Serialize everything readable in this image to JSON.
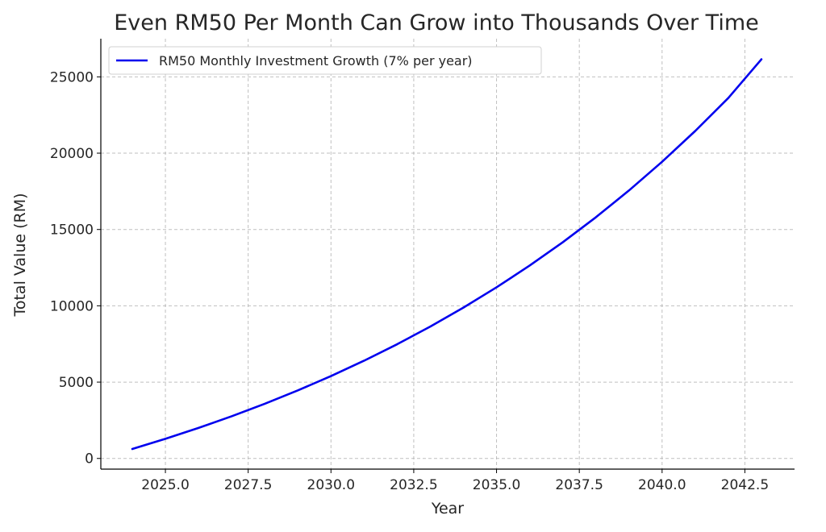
{
  "chart_data": {
    "type": "line",
    "title": "Even RM50 Per Month Can Grow into Thousands Over Time",
    "xlabel": "Year",
    "ylabel": "Total Value (RM)",
    "xlim": [
      2023.05,
      2044.0
    ],
    "ylim": [
      -700,
      27500
    ],
    "x_ticks": [
      2025.0,
      2027.5,
      2030.0,
      2032.5,
      2035.0,
      2037.5,
      2040.0,
      2042.5
    ],
    "x_tick_labels": [
      "2025.0",
      "2027.5",
      "2030.0",
      "2032.5",
      "2035.0",
      "2037.5",
      "2040.0",
      "2042.5"
    ],
    "y_ticks": [
      0,
      5000,
      10000,
      15000,
      20000,
      25000
    ],
    "y_tick_labels": [
      "0",
      "5000",
      "10000",
      "15000",
      "20000",
      "25000"
    ],
    "grid": true,
    "legend_position": "top-left",
    "series": [
      {
        "name": "RM50 Monthly Investment Growth (7% per year)",
        "color": "#0000ee",
        "x": [
          2024,
          2025,
          2026,
          2027,
          2028,
          2029,
          2030,
          2031,
          2032,
          2033,
          2034,
          2035,
          2036,
          2037,
          2038,
          2039,
          2040,
          2041,
          2042,
          2043
        ],
        "y": [
          620,
          1285,
          1998,
          2762,
          3580,
          4458,
          5397,
          6404,
          7484,
          8641,
          9882,
          11211,
          12636,
          14163,
          15800,
          17556,
          19437,
          21454,
          23616,
          26150
        ]
      }
    ]
  }
}
